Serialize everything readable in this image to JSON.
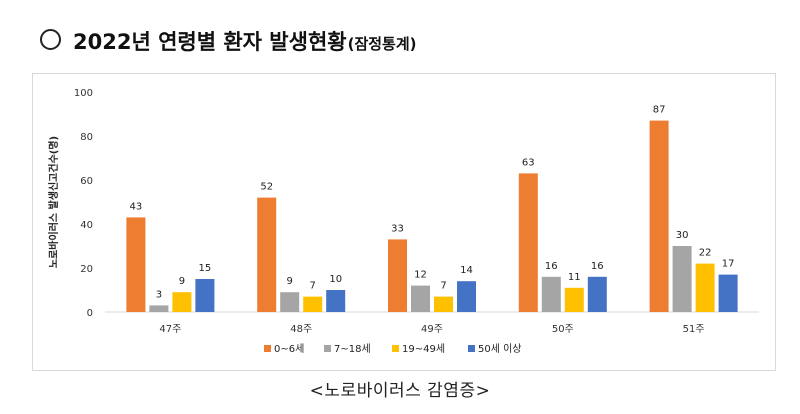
{
  "heading": {
    "main": "2022년 연령별 환자 발생현황",
    "suffix": "(잠정통계)"
  },
  "caption": "<노로바이러스 감염증>",
  "chart_data": {
    "type": "bar",
    "ylabel": "노로바이러스 발생신고건수(명)",
    "ylim": [
      0,
      100
    ],
    "yticks": [
      0,
      20,
      40,
      60,
      80,
      100
    ],
    "categories": [
      "47주",
      "48주",
      "49주",
      "50주",
      "51주"
    ],
    "series": [
      {
        "name": "0~6세",
        "color": "#ED7D31",
        "values": [
          43,
          52,
          33,
          63,
          87
        ]
      },
      {
        "name": "7~18세",
        "color": "#A5A5A5",
        "values": [
          3,
          9,
          12,
          16,
          30
        ]
      },
      {
        "name": "19~49세",
        "color": "#FFC000",
        "values": [
          9,
          7,
          7,
          11,
          22
        ]
      },
      {
        "name": "50세 이상",
        "color": "#4472C4",
        "values": [
          15,
          10,
          14,
          16,
          17
        ]
      }
    ],
    "legend_position": "bottom",
    "grid": false
  }
}
